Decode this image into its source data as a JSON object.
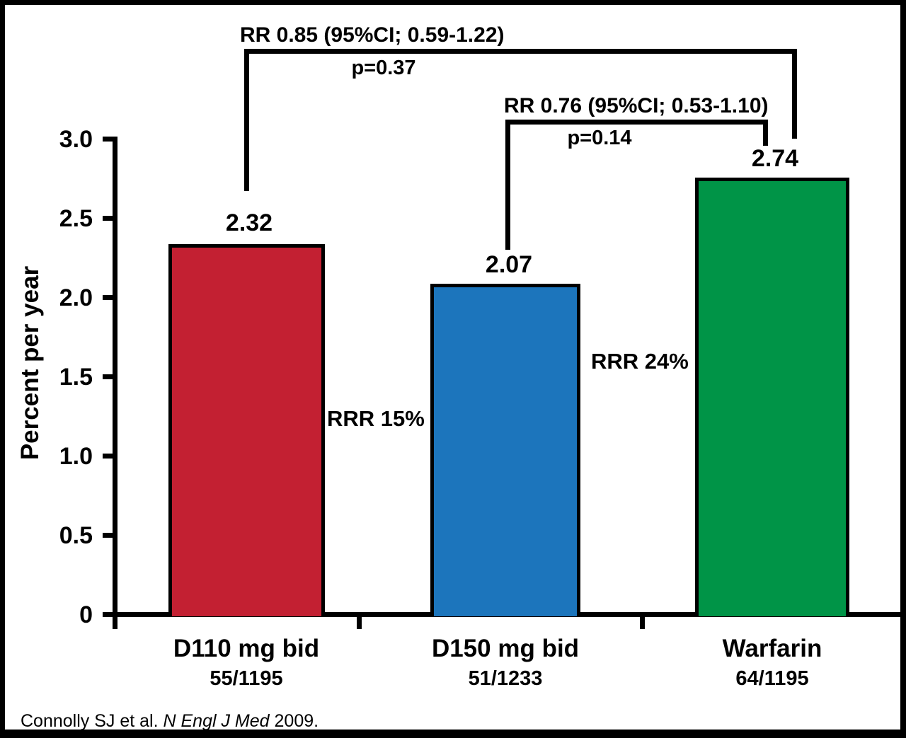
{
  "chart_data": {
    "type": "bar",
    "title": "",
    "xlabel": "",
    "ylabel": "Percent per year",
    "ylim": [
      0,
      3.0
    ],
    "grid": false,
    "yticks": [
      {
        "value": 3.0,
        "label": "3.0"
      },
      {
        "value": 2.5,
        "label": "2.5"
      },
      {
        "value": 2.0,
        "label": "2.0"
      },
      {
        "value": 1.5,
        "label": "1.5"
      },
      {
        "value": 1.0,
        "label": "1.0"
      },
      {
        "value": 0.5,
        "label": "0.5"
      },
      {
        "value": 0,
        "label": "0"
      }
    ],
    "series": [
      {
        "category": "D110 mg bid",
        "events": "55/1195",
        "value": 2.32,
        "value_label": "2.32",
        "color": "#c32032"
      },
      {
        "category": "D150 mg bid",
        "events": "51/1233",
        "value": 2.07,
        "value_label": "2.07",
        "color": "#1c75bc"
      },
      {
        "category": "Warfarin",
        "events": "64/1195",
        "value": 2.74,
        "value_label": "2.74",
        "color": "#009447"
      }
    ],
    "comparisons": [
      {
        "between": "D110 mg bid vs Warfarin",
        "rr": "RR 0.85 (95%CI; 0.59-1.22)",
        "p": "p=0.37"
      },
      {
        "between": "D150 mg bid vs Warfarin",
        "rr": "RR 0.76 (95%CI; 0.53-1.10)",
        "p": "p=0.14"
      }
    ],
    "rrr_labels": [
      "RRR 15%",
      "RRR 24%"
    ],
    "citation": {
      "authors": "Connolly SJ et al. ",
      "journal": "N Engl J Med",
      "year": " 2009."
    }
  }
}
